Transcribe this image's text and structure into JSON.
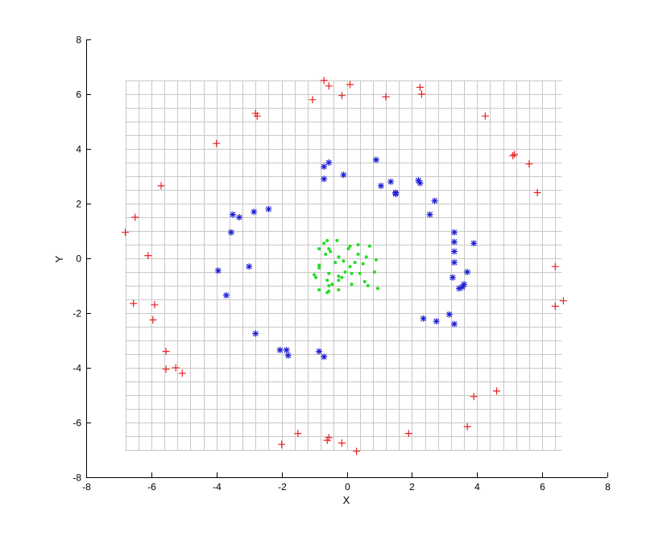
{
  "chart_data": {
    "type": "scatter",
    "xlabel": "X",
    "ylabel": "Y",
    "xlim": [
      -8,
      8
    ],
    "ylim": [
      -8,
      8
    ],
    "xticks": [
      "-8",
      "-6",
      "-4",
      "-2",
      "0",
      "2",
      "4",
      "6",
      "8"
    ],
    "yticks": [
      "-8",
      "-6",
      "-4",
      "-2",
      "0",
      "2",
      "4",
      "6",
      "8"
    ],
    "grid": {
      "shown": true,
      "x_range": [
        -6.8,
        6.6
      ],
      "y_range": [
        -7,
        6.5
      ],
      "x_step": 0.4,
      "y_step": 0.5,
      "color": "#c8c8c8"
    },
    "series": [
      {
        "marker": "plus",
        "color": "#e8221e",
        "points": [
          [
            -0.7,
            6.5
          ],
          [
            -0.55,
            6.3
          ],
          [
            0.1,
            6.35
          ],
          [
            -1.05,
            5.8
          ],
          [
            -0.15,
            5.95
          ],
          [
            1.2,
            5.9
          ],
          [
            2.25,
            6.25
          ],
          [
            2.3,
            6.0
          ],
          [
            -2.8,
            5.3
          ],
          [
            -2.75,
            5.2
          ],
          [
            4.25,
            5.2
          ],
          [
            -4.0,
            4.2
          ],
          [
            5.1,
            3.75
          ],
          [
            5.15,
            3.8
          ],
          [
            5.6,
            3.45
          ],
          [
            -5.7,
            2.65
          ],
          [
            5.85,
            2.4
          ],
          [
            -6.5,
            1.5
          ],
          [
            -6.8,
            0.95
          ],
          [
            -6.1,
            0.1
          ],
          [
            6.4,
            -0.3
          ],
          [
            -6.55,
            -1.65
          ],
          [
            -5.9,
            -1.7
          ],
          [
            6.65,
            -1.55
          ],
          [
            6.4,
            -1.75
          ],
          [
            -5.95,
            -2.25
          ],
          [
            -5.55,
            -3.4
          ],
          [
            -5.55,
            -4.05
          ],
          [
            -5.25,
            -4.0
          ],
          [
            -5.05,
            -4.2
          ],
          [
            4.6,
            -4.85
          ],
          [
            3.9,
            -5.05
          ],
          [
            3.7,
            -6.15
          ],
          [
            -1.5,
            -6.4
          ],
          [
            1.9,
            -6.4
          ],
          [
            -0.55,
            -6.55
          ],
          [
            -0.6,
            -6.65
          ],
          [
            -0.15,
            -6.75
          ],
          [
            -2.0,
            -6.8
          ],
          [
            0.3,
            -7.05
          ]
        ]
      },
      {
        "marker": "star",
        "color": "#1f1fd6",
        "points": [
          [
            0.9,
            3.6
          ],
          [
            -0.55,
            3.5
          ],
          [
            -0.7,
            3.35
          ],
          [
            -0.1,
            3.05
          ],
          [
            -0.7,
            2.9
          ],
          [
            1.35,
            2.8
          ],
          [
            2.2,
            2.85
          ],
          [
            2.25,
            2.75
          ],
          [
            1.05,
            2.65
          ],
          [
            1.5,
            2.4
          ],
          [
            1.5,
            2.35
          ],
          [
            2.7,
            2.1
          ],
          [
            -2.4,
            1.8
          ],
          [
            -2.85,
            1.7
          ],
          [
            2.55,
            1.6
          ],
          [
            -3.5,
            1.6
          ],
          [
            -3.3,
            1.5
          ],
          [
            -3.55,
            0.95
          ],
          [
            3.3,
            0.95
          ],
          [
            3.3,
            0.6
          ],
          [
            3.9,
            0.55
          ],
          [
            3.3,
            0.25
          ],
          [
            3.3,
            -0.15
          ],
          [
            -3.0,
            -0.3
          ],
          [
            -3.95,
            -0.45
          ],
          [
            3.7,
            -0.5
          ],
          [
            3.25,
            -0.7
          ],
          [
            3.6,
            -0.95
          ],
          [
            3.55,
            -1.05
          ],
          [
            3.45,
            -1.1
          ],
          [
            -3.7,
            -1.35
          ],
          [
            3.15,
            -2.05
          ],
          [
            2.35,
            -2.2
          ],
          [
            2.75,
            -2.3
          ],
          [
            3.3,
            -2.4
          ],
          [
            -2.8,
            -2.75
          ],
          [
            -2.05,
            -3.35
          ],
          [
            -1.85,
            -3.35
          ],
          [
            -1.8,
            -3.55
          ],
          [
            -0.85,
            -3.4
          ],
          [
            -0.7,
            -3.6
          ]
        ]
      },
      {
        "marker": "dot",
        "color": "#22dd22",
        "points": [
          [
            -0.6,
            0.65
          ],
          [
            -0.3,
            0.65
          ],
          [
            0.35,
            0.5
          ],
          [
            -0.7,
            0.55
          ],
          [
            0.1,
            0.45
          ],
          [
            0.7,
            0.45
          ],
          [
            -0.85,
            0.35
          ],
          [
            -0.55,
            0.35
          ],
          [
            0.05,
            0.35
          ],
          [
            -0.5,
            0.25
          ],
          [
            0.35,
            0.15
          ],
          [
            -0.65,
            0.15
          ],
          [
            -0.25,
            0.05
          ],
          [
            0.6,
            0.05
          ],
          [
            0.9,
            -0.05
          ],
          [
            -0.35,
            -0.15
          ],
          [
            -0.1,
            -0.1
          ],
          [
            0.25,
            -0.15
          ],
          [
            0.5,
            -0.2
          ],
          [
            -0.85,
            -0.25
          ],
          [
            -0.85,
            -0.35
          ],
          [
            0.1,
            -0.3
          ],
          [
            -0.05,
            -0.5
          ],
          [
            0.15,
            -0.55
          ],
          [
            0.4,
            -0.55
          ],
          [
            0.85,
            -0.5
          ],
          [
            -0.55,
            -0.55
          ],
          [
            -0.25,
            -0.65
          ],
          [
            -1.0,
            -0.6
          ],
          [
            -0.15,
            -0.7
          ],
          [
            -0.95,
            -0.7
          ],
          [
            -0.6,
            -0.8
          ],
          [
            -0.25,
            -0.8
          ],
          [
            0.55,
            -0.85
          ],
          [
            -0.45,
            -0.95
          ],
          [
            0.15,
            -0.95
          ],
          [
            -0.55,
            -1.0
          ],
          [
            0.65,
            -1.0
          ],
          [
            0.95,
            -1.1
          ],
          [
            -0.85,
            -1.15
          ],
          [
            -0.25,
            -1.15
          ],
          [
            -0.6,
            -1.25
          ],
          [
            -0.55,
            -1.2
          ]
        ]
      }
    ]
  }
}
